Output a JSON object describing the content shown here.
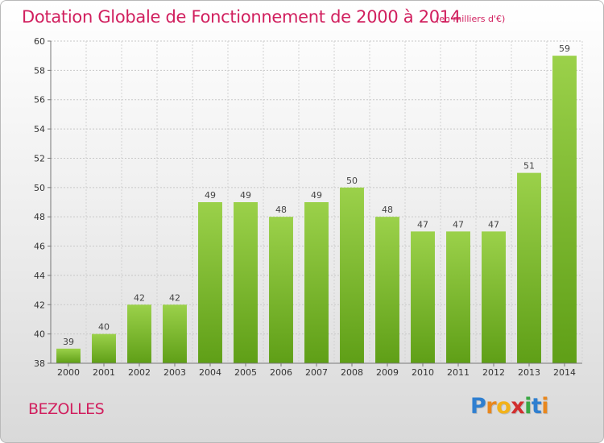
{
  "chart_data": {
    "type": "bar",
    "title": "Dotation Globale de Fonctionnement de 2000 à 2014",
    "subtitle": "(en milliers d'€)",
    "categories": [
      "2000",
      "2001",
      "2002",
      "2003",
      "2004",
      "2005",
      "2006",
      "2007",
      "2008",
      "2009",
      "2010",
      "2011",
      "2012",
      "2013",
      "2014"
    ],
    "values": [
      39,
      40,
      42,
      42,
      49,
      49,
      48,
      49,
      50,
      48,
      47,
      47,
      47,
      51,
      59
    ],
    "ylim": [
      38,
      60
    ],
    "yticks": [
      38,
      40,
      42,
      44,
      46,
      48,
      50,
      52,
      54,
      56,
      58,
      60
    ],
    "xlabel": "",
    "ylabel": "",
    "grid": true,
    "bar_color": "#7cb82e"
  },
  "footer": {
    "commune": "BEZOLLES",
    "logo_letters": [
      {
        "ch": "P",
        "color": "#2f7fd0"
      },
      {
        "ch": "r",
        "color": "#e8871e"
      },
      {
        "ch": "o",
        "color": "#f2b21a"
      },
      {
        "ch": "x",
        "color": "#d12f2f"
      },
      {
        "ch": "i",
        "color": "#3aa844"
      },
      {
        "ch": "t",
        "color": "#2f7fd0"
      },
      {
        "ch": "i",
        "color": "#e8871e"
      }
    ]
  }
}
